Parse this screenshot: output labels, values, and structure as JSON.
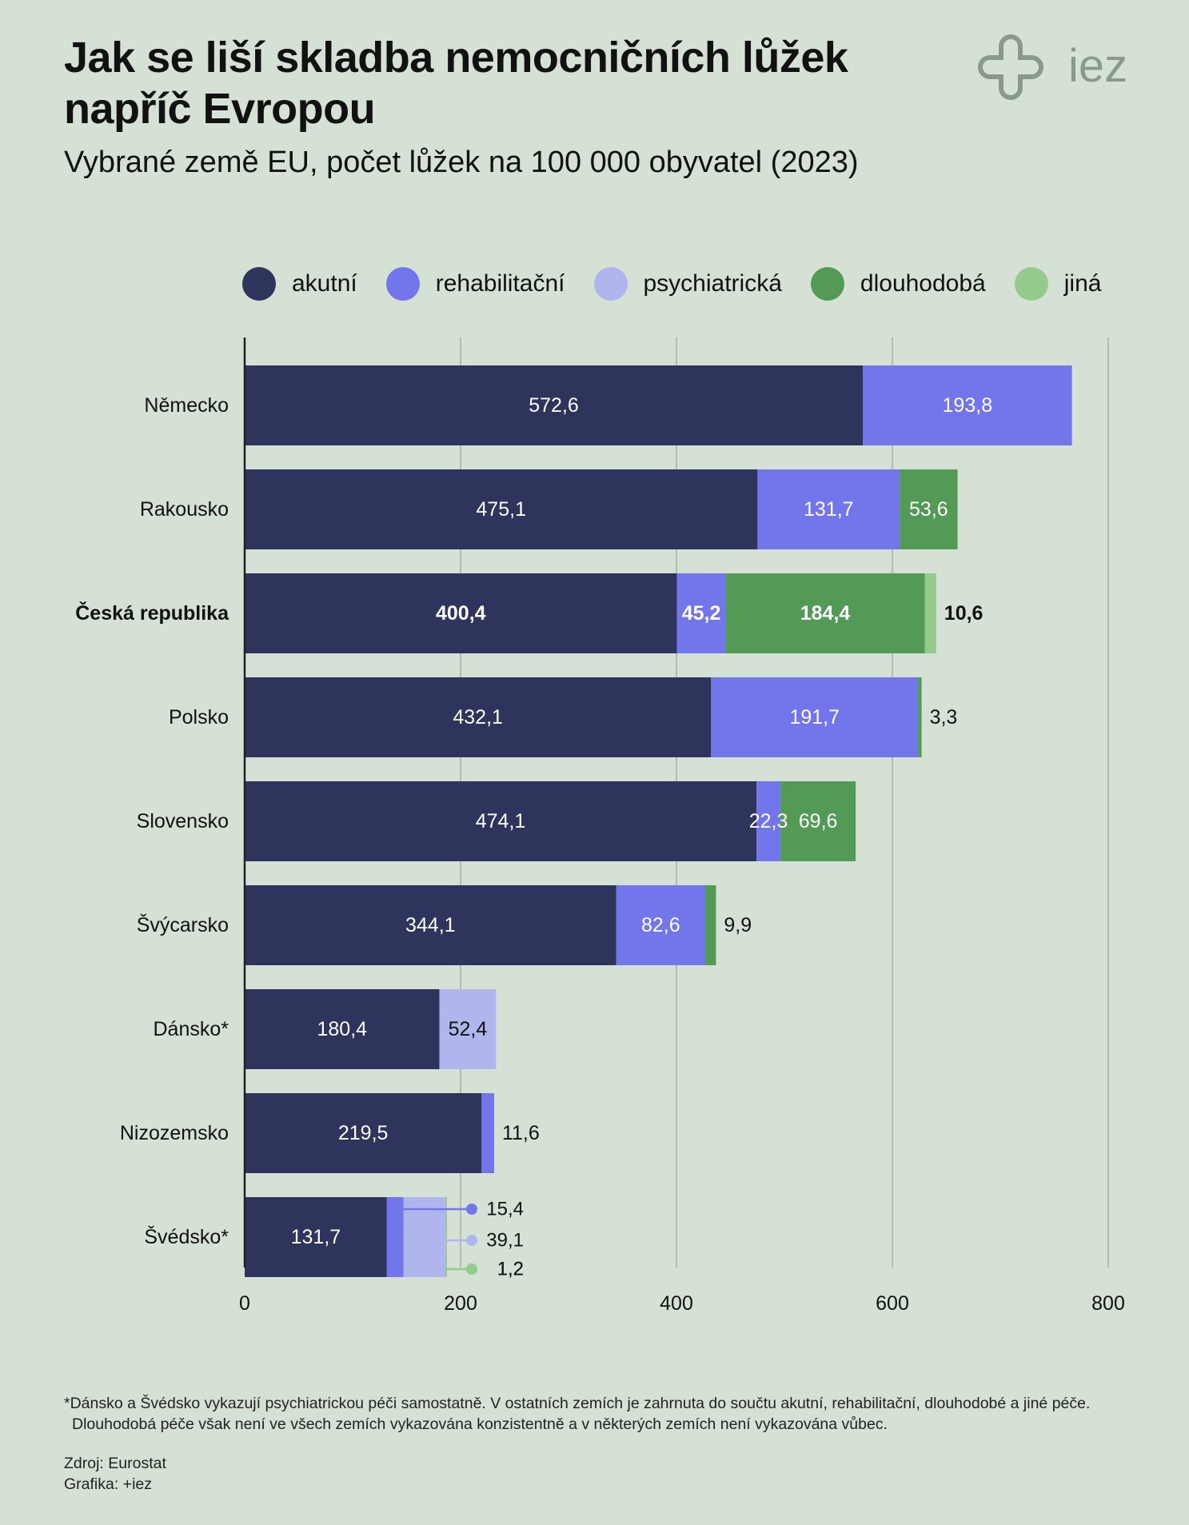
{
  "title": "Jak se liší skladba nemocničních lůžek napříč Evropou",
  "subtitle": "Vybrané země EU, počet lůžek na 100 000 obyvatel (2023)",
  "logo_text": "iez",
  "footnote_line1": "*Dánsko a Švédsko vykazují psychiatrickou péči samostatně. V ostatních zemích je zahrnuta do součtu akutní, rehabilitační, dlouhodobé a jiné péče.",
  "footnote_line2": "Dlouhodobá péče však není ve všech zemích vykazována konzistentně a v některých zemích není vykazována vůbec.",
  "source": "Zdroj: Eurostat",
  "graphics": "Grafika: +iez",
  "colors": {
    "background": "#d5e1d4",
    "akutni": "#2f345c",
    "rehabilitacni": "#7375ea",
    "psychiatricka": "#b0b5ee",
    "dlouhodoba": "#529a56",
    "jina": "#93cb8c",
    "grid": "#b3bcb2",
    "logo": "#8a9a8a"
  },
  "chart_data": {
    "type": "bar",
    "orientation": "horizontal",
    "stacked": true,
    "xlim": [
      0,
      800
    ],
    "xticks": [
      "0",
      "200",
      "400",
      "600",
      "800"
    ],
    "xtick_values": [
      0,
      200,
      400,
      600,
      800
    ],
    "grid": true,
    "legend_position": "top",
    "categories": [
      "Německo",
      "Rakousko",
      "Česká republika",
      "Polsko",
      "Slovensko",
      "Švýcarsko",
      "Dánsko*",
      "Nizozemsko",
      "Švédsko*"
    ],
    "highlight_category": "Česká republika",
    "series": [
      {
        "key": "akutni",
        "name": "akutní",
        "values": [
          572.6,
          475.1,
          400.4,
          432.1,
          474.1,
          344.1,
          180.4,
          219.5,
          131.7
        ],
        "labels": [
          "572,6",
          "475,1",
          "400,4",
          "432,1",
          "474,1",
          "344,1",
          "180,4",
          "219,5",
          "131,7"
        ]
      },
      {
        "key": "rehabilitacni",
        "name": "rehabilitační",
        "values": [
          193.8,
          131.7,
          45.2,
          191.7,
          22.3,
          82.6,
          0,
          11.6,
          15.4
        ],
        "labels": [
          "193,8",
          "131,7",
          "45,2",
          "191,7",
          "22,3",
          "82,6",
          "",
          "11,6",
          "15,4"
        ]
      },
      {
        "key": "psychiatricka",
        "name": "psychiatrická",
        "values": [
          0,
          0,
          0,
          0,
          0,
          0,
          52.4,
          0,
          39.1
        ],
        "labels": [
          "",
          "",
          "",
          "",
          "",
          "",
          "52,4",
          "",
          "39,1"
        ]
      },
      {
        "key": "dlouhodoba",
        "name": "dlouhodobá",
        "values": [
          0,
          53.6,
          184.4,
          3.3,
          69.6,
          9.9,
          0,
          0,
          0
        ],
        "labels": [
          "",
          "53,6",
          "184,4",
          "3,3",
          "69,6",
          "9,9",
          "",
          "",
          ""
        ]
      },
      {
        "key": "jina",
        "name": "jiná",
        "values": [
          0,
          0,
          10.6,
          0,
          0,
          0,
          0,
          0,
          1.2
        ],
        "labels": [
          "",
          "",
          "10,6",
          "",
          "",
          "",
          "",
          "",
          "1,2"
        ]
      }
    ]
  }
}
